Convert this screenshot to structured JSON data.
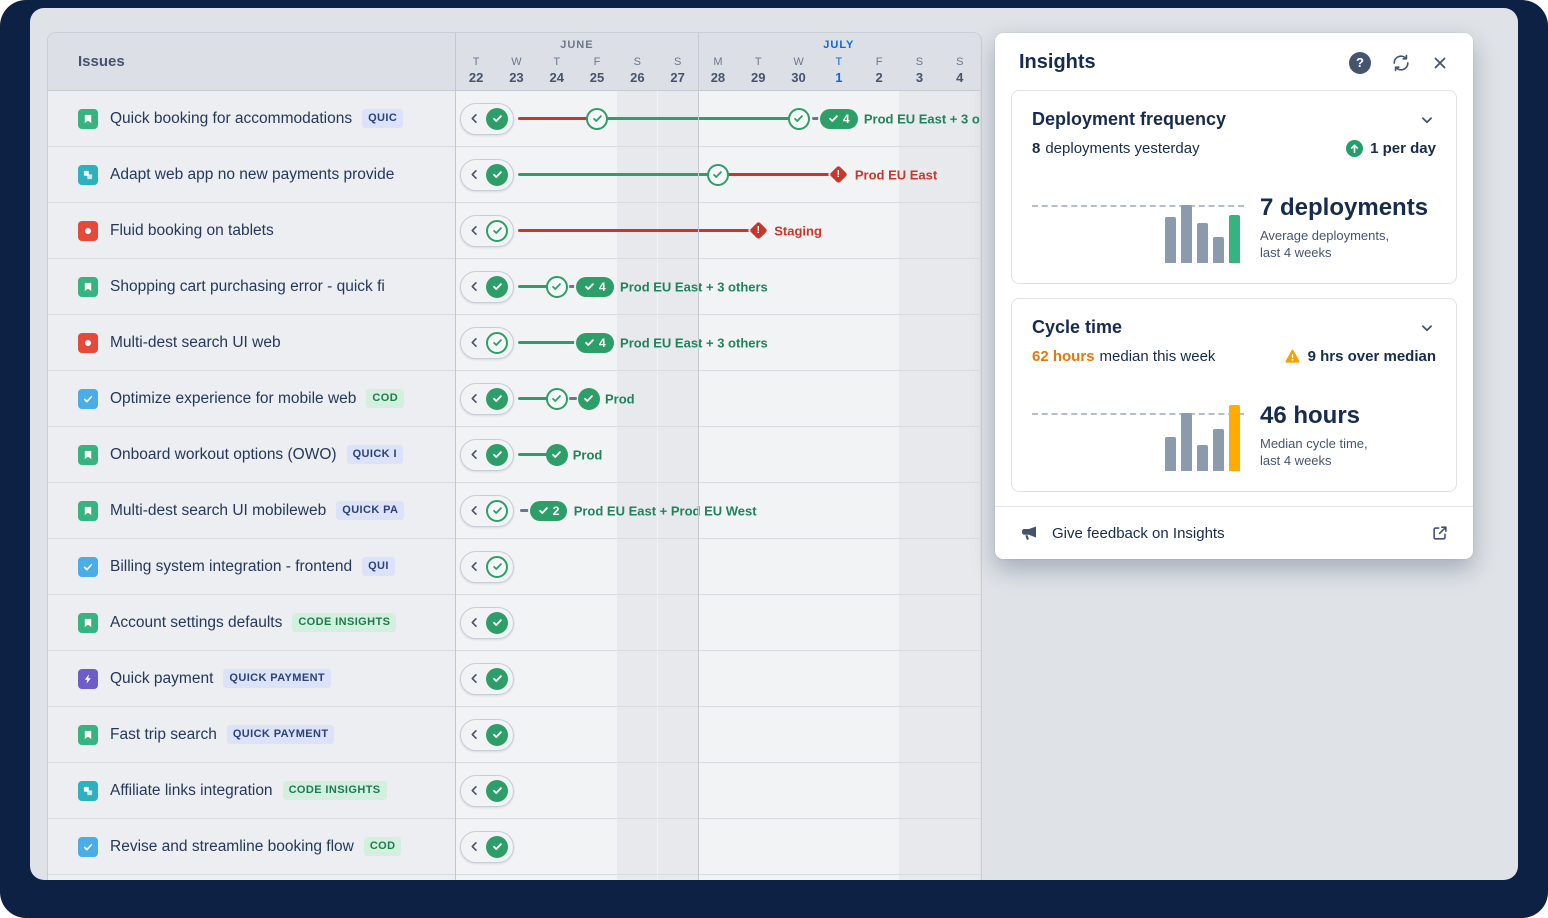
{
  "board": {
    "issues_header": "Issues",
    "months": [
      {
        "label": "JUNE",
        "start": 0,
        "end": 5,
        "color": "#6B778C"
      },
      {
        "label": "JULY",
        "start": 6,
        "end": 12,
        "color": "#0C66E4"
      }
    ],
    "days": [
      {
        "dow": "T",
        "num": "22"
      },
      {
        "dow": "W",
        "num": "23"
      },
      {
        "dow": "T",
        "num": "24"
      },
      {
        "dow": "F",
        "num": "25"
      },
      {
        "dow": "S",
        "num": "26",
        "weekend": true
      },
      {
        "dow": "S",
        "num": "27",
        "weekend": true
      },
      {
        "dow": "M",
        "num": "28"
      },
      {
        "dow": "T",
        "num": "29"
      },
      {
        "dow": "W",
        "num": "30"
      },
      {
        "dow": "T",
        "num": "1",
        "today": true
      },
      {
        "dow": "F",
        "num": "2"
      },
      {
        "dow": "S",
        "num": "3",
        "weekend": true
      },
      {
        "dow": "S",
        "num": "4",
        "weekend": true
      }
    ],
    "rows": [
      {
        "icon": "story",
        "title": "Quick booking for accommodations",
        "badge": {
          "text": "QUIC",
          "style": "blue"
        },
        "start_check": "filled",
        "segments": [
          {
            "from": "cap",
            "to": 3,
            "color": "red"
          },
          {
            "from": 3,
            "to": 8,
            "color": "green"
          },
          {
            "from": 8.33,
            "to": 8.52,
            "color": "dash"
          }
        ],
        "nodes": [
          {
            "type": "check",
            "at": 3,
            "style": "outline"
          },
          {
            "type": "check",
            "at": 8,
            "style": "outline"
          },
          {
            "type": "deploy",
            "at": 9,
            "count": "4",
            "label": "Prod EU East + 3 o"
          }
        ]
      },
      {
        "icon": "subtask",
        "title": "Adapt web app no new payments provide",
        "badge": null,
        "start_check": "filled",
        "segments": [
          {
            "from": "cap",
            "to": 6,
            "color": "green"
          },
          {
            "from": 6,
            "to": 9,
            "color": "red"
          }
        ],
        "nodes": [
          {
            "type": "check",
            "at": 6,
            "style": "outline"
          },
          {
            "type": "warn",
            "at": 9,
            "label": "Prod EU East"
          }
        ]
      },
      {
        "icon": "bug",
        "title": "Fluid booking on tablets",
        "badge": null,
        "start_check": "outline",
        "segments": [
          {
            "from": "cap",
            "to": 7,
            "color": "red"
          }
        ],
        "nodes": [
          {
            "type": "warn",
            "at": 7,
            "label": "Staging"
          }
        ]
      },
      {
        "icon": "story",
        "title": "Shopping cart purchasing error - quick fi",
        "badge": null,
        "start_check": "filled",
        "segments": [
          {
            "from": "cap",
            "to": 2,
            "color": "green"
          },
          {
            "from": 2.3,
            "to": 2.48,
            "color": "dash"
          }
        ],
        "nodes": [
          {
            "type": "check",
            "at": 2,
            "style": "outline"
          },
          {
            "type": "deploy",
            "at": 2.95,
            "count": "4",
            "label": "Prod EU East + 3 others"
          }
        ]
      },
      {
        "icon": "bug",
        "title": "Multi-dest search UI web",
        "badge": null,
        "start_check": "outline",
        "segments": [
          {
            "from": "cap",
            "to": 2.6,
            "color": "green"
          }
        ],
        "nodes": [
          {
            "type": "deploy",
            "at": 2.95,
            "count": "4",
            "label": "Prod EU East + 3 others"
          }
        ]
      },
      {
        "icon": "task",
        "title": "Optimize experience for mobile web",
        "badge": {
          "text": "COD",
          "style": "green"
        },
        "start_check": "filled",
        "segments": [
          {
            "from": "cap",
            "to": 2,
            "color": "green"
          },
          {
            "from": 2.3,
            "to": 2.5,
            "color": "dash"
          }
        ],
        "nodes": [
          {
            "type": "check",
            "at": 2,
            "style": "outline"
          },
          {
            "type": "check",
            "at": 2.8,
            "style": "filled",
            "label": "Prod"
          }
        ]
      },
      {
        "icon": "story",
        "title": "Onboard workout options (OWO)",
        "badge": {
          "text": "QUICK I",
          "style": "blue"
        },
        "start_check": "filled",
        "segments": [
          {
            "from": "cap",
            "to": 2,
            "color": "green"
          }
        ],
        "nodes": [
          {
            "type": "check",
            "at": 2,
            "style": "filled",
            "label": "Prod"
          }
        ]
      },
      {
        "icon": "story",
        "title": "Multi-dest search UI mobileweb",
        "badge": {
          "text": "QUICK PA",
          "style": "blue"
        },
        "start_check": "outline",
        "segments": [
          {
            "from": 1.08,
            "to": 1.3,
            "color": "dash"
          }
        ],
        "nodes": [
          {
            "type": "deploy",
            "at": 1.8,
            "count": "2",
            "label": "Prod EU East + Prod EU West"
          }
        ]
      },
      {
        "icon": "task",
        "title": "Billing system integration - frontend",
        "badge": {
          "text": "QUI",
          "style": "blue"
        },
        "start_check": "outline",
        "segments": [],
        "nodes": []
      },
      {
        "icon": "story",
        "title": "Account settings defaults",
        "badge": {
          "text": "CODE INSIGHTS",
          "style": "green"
        },
        "start_check": "filled",
        "segments": [],
        "nodes": []
      },
      {
        "icon": "epic",
        "title": "Quick payment",
        "badge": {
          "text": "QUICK PAYMENT",
          "style": "blue"
        },
        "start_check": "filled",
        "segments": [],
        "nodes": []
      },
      {
        "icon": "story",
        "title": "Fast trip search",
        "badge": {
          "text": "QUICK PAYMENT",
          "style": "blue"
        },
        "start_check": "filled",
        "segments": [],
        "nodes": []
      },
      {
        "icon": "subtask",
        "title": "Affiliate links integration",
        "badge": {
          "text": "CODE INSIGHTS",
          "style": "green"
        },
        "start_check": "filled",
        "segments": [],
        "nodes": []
      },
      {
        "icon": "task",
        "title": "Revise and streamline booking flow",
        "badge": {
          "text": "COD",
          "style": "green"
        },
        "start_check": "filled",
        "segments": [],
        "nodes": []
      }
    ]
  },
  "colors": {
    "success_green": "#2E9E68",
    "failure_red": "#C9372C",
    "warning_orange": "#FFAB00",
    "today_blue": "#0C66E4",
    "bar_gray": "#8C9BAB"
  },
  "insights": {
    "title": "Insights",
    "deployment": {
      "title": "Deployment frequency",
      "stat_number": "8",
      "stat_label": "deployments yesterday",
      "trend_label": "1 per day",
      "big_value": "7 deployments",
      "caption_line1": "Average deployments,",
      "caption_line2": "last 4 weeks",
      "chart": {
        "type": "bar",
        "values": [
          46,
          58,
          40,
          26,
          48
        ],
        "colors": [
          "#8C9BAB",
          "#8C9BAB",
          "#8C9BAB",
          "#8C9BAB",
          "#36B37E"
        ]
      }
    },
    "cycle": {
      "title": "Cycle time",
      "stat_number": "62 hours",
      "stat_label": "median this week",
      "warn_label": "9 hrs over median",
      "big_value": "46 hours",
      "caption_line1": "Median cycle time,",
      "caption_line2": "last 4 weeks",
      "chart": {
        "type": "bar",
        "values": [
          34,
          58,
          26,
          42,
          66
        ],
        "colors": [
          "#8C9BAB",
          "#8C9BAB",
          "#8C9BAB",
          "#8C9BAB",
          "#FFAB00"
        ]
      }
    },
    "feedback_label": "Give feedback on Insights"
  }
}
